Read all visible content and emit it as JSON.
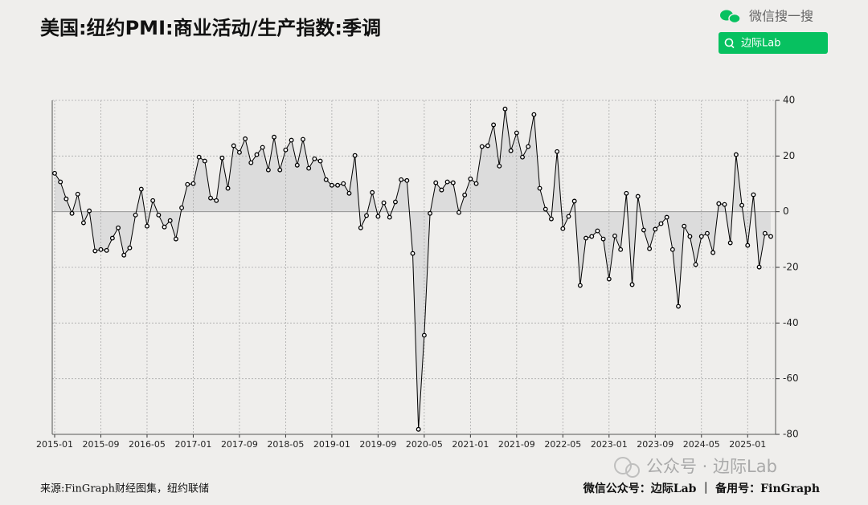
{
  "chart_data": {
    "type": "line",
    "title": "美国:纽约PMI:商业活动/生产指数:季调",
    "categories": [
      "2015-01",
      null,
      null,
      null,
      null,
      null,
      null,
      null,
      "2015-09",
      null,
      null,
      null,
      null,
      null,
      null,
      null,
      "2016-05",
      null,
      null,
      null,
      null,
      null,
      null,
      null,
      "2017-01",
      null,
      null,
      null,
      null,
      null,
      null,
      null,
      "2017-09",
      null,
      null,
      null,
      null,
      null,
      null,
      null,
      "2018-05",
      null,
      null,
      null,
      null,
      null,
      null,
      null,
      "2019-01",
      null,
      null,
      null,
      null,
      null,
      null,
      null,
      "2019-09",
      null,
      null,
      null,
      null,
      null,
      null,
      null,
      "2020-05",
      null,
      null,
      null,
      null,
      null,
      null,
      null,
      "2021-01",
      null,
      null,
      null,
      null,
      null,
      null,
      null,
      "2021-09",
      null,
      null,
      null,
      null,
      null,
      null,
      null,
      "2022-05",
      null,
      null,
      null,
      null,
      null,
      null,
      null,
      "2023-01",
      null,
      null,
      null,
      null,
      null,
      null,
      null,
      "2023-09",
      null,
      null,
      null,
      null,
      null,
      null,
      null,
      "2024-05",
      null,
      null,
      null,
      null,
      null,
      null,
      null,
      "2025-01",
      null,
      null,
      null,
      null
    ],
    "series": [
      {
        "name": null,
        "color": "#000000",
        "values": [
          13.8,
          10.7,
          4.6,
          -0.6,
          6.3,
          -4,
          0.3,
          -14.1,
          -13.6,
          -13.9,
          -9.5,
          -5.8,
          -15.6,
          -13,
          -1.2,
          8.1,
          -5.2,
          4,
          -1.2,
          -5.5,
          -3.2,
          -9.8,
          1.4,
          9.8,
          10.1,
          19.6,
          18.2,
          4.9,
          4,
          19.3,
          8.4,
          23.7,
          21.3,
          26.2,
          17.6,
          20.5,
          23.1,
          15,
          26.8,
          15,
          22.2,
          25.7,
          16.7,
          26,
          15.6,
          19,
          18.2,
          11.5,
          9.5,
          9.5,
          10.1,
          6.6,
          20.2,
          -5.8,
          -1.4,
          6.9,
          -1.7,
          3.2,
          -2,
          3.5,
          11.5,
          11.2,
          -15,
          -78.2,
          -44.4,
          -0.6,
          10.4,
          7.8,
          10.7,
          10.4,
          -0.3,
          6,
          11.8,
          10.1,
          23.4,
          23.7,
          31.2,
          16.4,
          36.9,
          21.9,
          28.3,
          19.6,
          23.4,
          34.9,
          8.4,
          0.9,
          -2.6,
          21.6,
          -6.1,
          -1.7,
          3.8,
          -26.5,
          -9.5,
          -8.9,
          -6.9,
          -9.8,
          -24.2,
          -8.7,
          -13.6,
          6.6,
          -26.2,
          5.5,
          -6.6,
          -13.3,
          -6.3,
          -4.3,
          -2,
          -13.6,
          -34,
          -5.2,
          -8.9,
          -19,
          -8.9,
          -7.8,
          -14.7,
          2.9,
          2.6,
          -11.2,
          20.5,
          2.3,
          -12.1,
          6.1,
          -19.9,
          -7.8,
          -8.9
        ]
      }
    ],
    "ylim": [
      -80,
      40
    ],
    "yticks": [
      -80,
      -60,
      -40,
      -20,
      0,
      20,
      40
    ],
    "grid": true,
    "area_color": "#dcdcdc",
    "source": "来源:FinGraph财经图集，纽约联储"
  },
  "header": {
    "search": "微信搜一搜",
    "button": "边际Lab"
  },
  "footer": {
    "account": "微信公众号：边际Lab ｜ 备用号：FinGraph"
  },
  "watermark": "公众号 · 边际Lab"
}
